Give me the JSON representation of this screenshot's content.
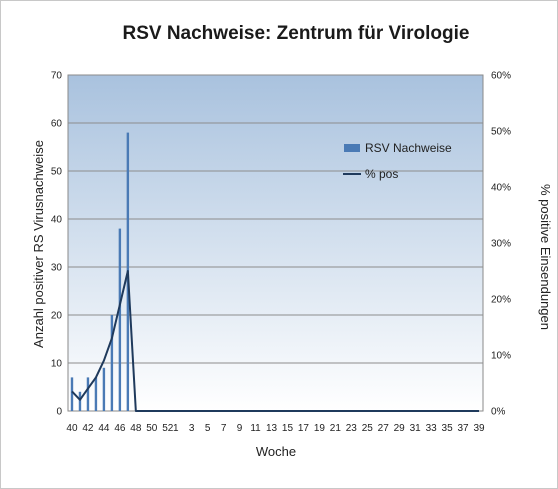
{
  "chart_data": {
    "type": "bar",
    "title": "RSV Nachweise: Zentrum für Virologie",
    "xlabel": "Woche",
    "ylabel": "Anzahl positiver RS Virusnachweise",
    "y2label": "% positive Einsendungen",
    "ylim": [
      0,
      70
    ],
    "y2lim": [
      0,
      60
    ],
    "yticks": [
      "0",
      "10",
      "20",
      "30",
      "40",
      "50",
      "60",
      "70"
    ],
    "y2ticks": [
      "0%",
      "10%",
      "20%",
      "30%",
      "40%",
      "50%",
      "60%"
    ],
    "grid": true,
    "legend_position": "top-right",
    "weeks": [
      "40",
      "41",
      "42",
      "43",
      "44",
      "45",
      "46",
      "47",
      "48",
      "49",
      "50",
      "51",
      "52",
      "1",
      "2",
      "3",
      "4",
      "5",
      "6",
      "7",
      "8",
      "9",
      "10",
      "11",
      "12",
      "13",
      "14",
      "15",
      "16",
      "17",
      "18",
      "19",
      "20",
      "21",
      "22",
      "23",
      "24",
      "25",
      "26",
      "27",
      "28",
      "29",
      "30",
      "31",
      "32",
      "33",
      "34",
      "35",
      "36",
      "37",
      "38",
      "39"
    ],
    "x_tick_labels": [
      "40",
      "42",
      "44",
      "46",
      "48",
      "50",
      "52",
      "1",
      "3",
      "5",
      "7",
      "9",
      "11",
      "13",
      "15",
      "17",
      "19",
      "21",
      "23",
      "25",
      "27",
      "29",
      "31",
      "33",
      "35",
      "37",
      "39"
    ],
    "series": [
      {
        "name": "RSV Nachweise",
        "kind": "bar",
        "axis": "left",
        "color": "#4a7ab5",
        "values": [
          7,
          4,
          7,
          7,
          9,
          20,
          38,
          58,
          0,
          0,
          0,
          0,
          0,
          0,
          0,
          0,
          0,
          0,
          0,
          0,
          0,
          0,
          0,
          0,
          0,
          0,
          0,
          0,
          0,
          0,
          0,
          0,
          0,
          0,
          0,
          0,
          0,
          0,
          0,
          0,
          0,
          0,
          0,
          0,
          0,
          0,
          0,
          0,
          0,
          0,
          0,
          0
        ]
      },
      {
        "name": "% pos",
        "kind": "line",
        "axis": "right",
        "color": "#1f3a5c",
        "values": [
          3.5,
          2,
          4,
          6,
          9,
          13,
          19,
          25,
          0,
          0,
          0,
          0,
          0,
          0,
          0,
          0,
          0,
          0,
          0,
          0,
          0,
          0,
          0,
          0,
          0,
          0,
          0,
          0,
          0,
          0,
          0,
          0,
          0,
          0,
          0,
          0,
          0,
          0,
          0,
          0,
          0,
          0,
          0,
          0,
          0,
          0,
          0,
          0,
          0,
          0,
          0,
          0
        ]
      }
    ]
  }
}
